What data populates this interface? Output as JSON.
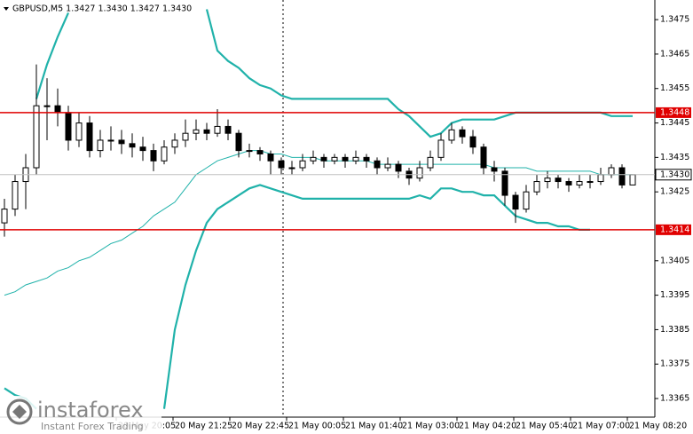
{
  "chart_data": {
    "type": "candlestick",
    "title": "GBPUSD,M5  1.3427 1.3430 1.3427 1.3430",
    "ylim": [
      1.33596,
      1.34807
    ],
    "yticks": [
      1.3475,
      1.3465,
      1.3455,
      1.3445,
      1.3435,
      1.3425,
      1.3405,
      1.3395,
      1.3385,
      1.3375,
      1.3365
    ],
    "xtick_labels": [
      "20 May 20:05",
      "20 May 21:25",
      "20 May 22:45",
      "21 May 00:05",
      "21 May 01:40",
      "21 May 03:00",
      "21 May 04:20",
      "21 May 05:40",
      "21 May 07:00",
      "21 May 08:20"
    ],
    "candles": [
      [
        1.3416,
        1.3423,
        1.3412,
        1.342
      ],
      [
        1.342,
        1.343,
        1.3418,
        1.3428
      ],
      [
        1.3428,
        1.3436,
        1.342,
        1.3432
      ],
      [
        1.3432,
        1.3462,
        1.343,
        1.345
      ],
      [
        1.345,
        1.3458,
        1.344,
        1.345
      ],
      [
        1.345,
        1.3455,
        1.3444,
        1.3448
      ],
      [
        1.3448,
        1.345,
        1.3437,
        1.344
      ],
      [
        1.344,
        1.3448,
        1.3438,
        1.3445
      ],
      [
        1.3445,
        1.3447,
        1.3435,
        1.3437
      ],
      [
        1.3437,
        1.3443,
        1.3435,
        1.344
      ],
      [
        1.344,
        1.3444,
        1.3437,
        1.344
      ],
      [
        1.344,
        1.3443,
        1.3436,
        1.3439
      ],
      [
        1.3439,
        1.3442,
        1.3435,
        1.3438
      ],
      [
        1.3438,
        1.3441,
        1.3434,
        1.3437
      ],
      [
        1.3437,
        1.3439,
        1.3431,
        1.3434
      ],
      [
        1.3434,
        1.344,
        1.3433,
        1.3438
      ],
      [
        1.3438,
        1.3442,
        1.3436,
        1.344
      ],
      [
        1.344,
        1.3446,
        1.3438,
        1.3442
      ],
      [
        1.3442,
        1.3446,
        1.344,
        1.3443
      ],
      [
        1.3443,
        1.3445,
        1.344,
        1.3442
      ],
      [
        1.3442,
        1.3449,
        1.3441,
        1.3444
      ],
      [
        1.3444,
        1.3446,
        1.344,
        1.3442
      ],
      [
        1.3442,
        1.3443,
        1.3435,
        1.3437
      ],
      [
        1.3437,
        1.3439,
        1.3435,
        1.3437
      ],
      [
        1.3437,
        1.3438,
        1.3434,
        1.3436
      ],
      [
        1.3436,
        1.3437,
        1.343,
        1.3434
      ],
      [
        1.3434,
        1.3435,
        1.343,
        1.3432
      ],
      [
        1.3432,
        1.3434,
        1.343,
        1.3432
      ],
      [
        1.3432,
        1.3436,
        1.3431,
        1.3434
      ],
      [
        1.3434,
        1.3437,
        1.3433,
        1.3435
      ],
      [
        1.3435,
        1.3436,
        1.3432,
        1.3434
      ],
      [
        1.3434,
        1.3436,
        1.3433,
        1.3435
      ],
      [
        1.3435,
        1.3436,
        1.3432,
        1.3434
      ],
      [
        1.3434,
        1.3437,
        1.3433,
        1.3435
      ],
      [
        1.3435,
        1.3436,
        1.3432,
        1.3434
      ],
      [
        1.3434,
        1.3435,
        1.343,
        1.3432
      ],
      [
        1.3432,
        1.3435,
        1.3431,
        1.3433
      ],
      [
        1.3433,
        1.3434,
        1.3429,
        1.3431
      ],
      [
        1.3431,
        1.3432,
        1.3427,
        1.3429
      ],
      [
        1.3429,
        1.3434,
        1.3428,
        1.3432
      ],
      [
        1.3432,
        1.3437,
        1.3431,
        1.3435
      ],
      [
        1.3435,
        1.3442,
        1.3434,
        1.344
      ],
      [
        1.344,
        1.3445,
        1.3439,
        1.3443
      ],
      [
        1.3443,
        1.3444,
        1.3439,
        1.3441
      ],
      [
        1.3441,
        1.3443,
        1.3436,
        1.3438
      ],
      [
        1.3438,
        1.3439,
        1.343,
        1.3432
      ],
      [
        1.3432,
        1.3434,
        1.3428,
        1.3431
      ],
      [
        1.3431,
        1.3432,
        1.3421,
        1.3424
      ],
      [
        1.3424,
        1.3425,
        1.3416,
        1.342
      ],
      [
        1.342,
        1.3427,
        1.3419,
        1.3425
      ],
      [
        1.3425,
        1.343,
        1.3424,
        1.3428
      ],
      [
        1.3428,
        1.3431,
        1.3426,
        1.3429
      ],
      [
        1.3429,
        1.343,
        1.3426,
        1.3428
      ],
      [
        1.3428,
        1.3429,
        1.3425,
        1.3427
      ],
      [
        1.3427,
        1.343,
        1.3426,
        1.3428
      ],
      [
        1.3428,
        1.343,
        1.3426,
        1.3428
      ],
      [
        1.3428,
        1.3432,
        1.3427,
        1.343
      ],
      [
        1.343,
        1.3433,
        1.3429,
        1.3432
      ],
      [
        1.3432,
        1.3433,
        1.3426,
        1.3427
      ],
      [
        1.3427,
        1.343,
        1.3427,
        1.343
      ]
    ],
    "series": [
      {
        "name": "upper",
        "color": "#20b2aa",
        "width": 2.2,
        "values": [
          null,
          null,
          null,
          1.3452,
          1.3462,
          1.347,
          1.3477,
          null,
          null,
          null,
          null,
          null,
          null,
          null,
          null,
          null,
          null,
          null,
          null,
          1.3478,
          1.3466,
          1.3463,
          1.3461,
          1.3458,
          1.3456,
          1.3455,
          1.3453,
          1.3452,
          1.3452,
          1.3452,
          1.3452,
          1.3452,
          1.3452,
          1.3452,
          1.3452,
          1.3452,
          1.3452,
          1.3449,
          1.3447,
          1.3444,
          1.3441,
          1.3442,
          1.3445,
          1.3446,
          1.3446,
          1.3446,
          1.3446,
          1.3447,
          1.3448,
          1.3448,
          1.3448,
          1.3448,
          1.3448,
          1.3448,
          1.3448,
          1.3448,
          1.3448,
          1.3447,
          1.3447,
          1.3447
        ]
      },
      {
        "name": "lower",
        "color": "#20b2aa",
        "width": 2.2,
        "values": [
          1.3368,
          1.3366,
          1.3365,
          1.3362,
          null,
          null,
          null,
          null,
          null,
          null,
          null,
          null,
          null,
          null,
          null,
          1.3362,
          1.3385,
          1.3398,
          1.3408,
          1.3416,
          1.342,
          1.3422,
          1.3424,
          1.3426,
          1.3427,
          1.3426,
          1.3425,
          1.3424,
          1.3423,
          1.3423,
          1.3423,
          1.3423,
          1.3423,
          1.3423,
          1.3423,
          1.3423,
          1.3423,
          1.3423,
          1.3423,
          1.3424,
          1.3423,
          1.3426,
          1.3426,
          1.3425,
          1.3425,
          1.3424,
          1.3424,
          1.3421,
          1.3418,
          1.3417,
          1.3416,
          1.3416,
          1.3415,
          1.3415,
          1.3414,
          1.3414,
          null,
          null,
          null,
          null
        ]
      },
      {
        "name": "middle",
        "color": "#20b2aa",
        "width": 1,
        "values": [
          1.3395,
          1.3396,
          1.3398,
          1.3399,
          1.34,
          1.3402,
          1.3403,
          1.3405,
          1.3406,
          1.3408,
          1.341,
          1.3411,
          1.3413,
          1.3415,
          1.3418,
          1.342,
          1.3422,
          1.3426,
          1.343,
          1.3432,
          1.3434,
          1.3435,
          1.3436,
          1.3437,
          1.3437,
          1.3436,
          1.3436,
          1.3435,
          1.3435,
          1.3435,
          1.3434,
          1.3434,
          1.3434,
          1.3434,
          1.3434,
          1.3433,
          1.3433,
          1.3433,
          1.3433,
          1.3433,
          1.3433,
          1.3433,
          1.3433,
          1.3433,
          1.3433,
          1.3433,
          1.3432,
          1.3432,
          1.3432,
          1.3432,
          1.3431,
          1.3431,
          1.3431,
          1.3431,
          1.3431,
          1.3431,
          1.343,
          1.343,
          1.343,
          1.343
        ]
      }
    ],
    "levels": [
      1.3448,
      1.3414
    ],
    "level_color": "#e00000",
    "current_price": {
      "value": 1.343,
      "label": "1.3430"
    },
    "logo": {
      "name": "instaforex",
      "tagline": "Instant Forex Trading"
    }
  }
}
